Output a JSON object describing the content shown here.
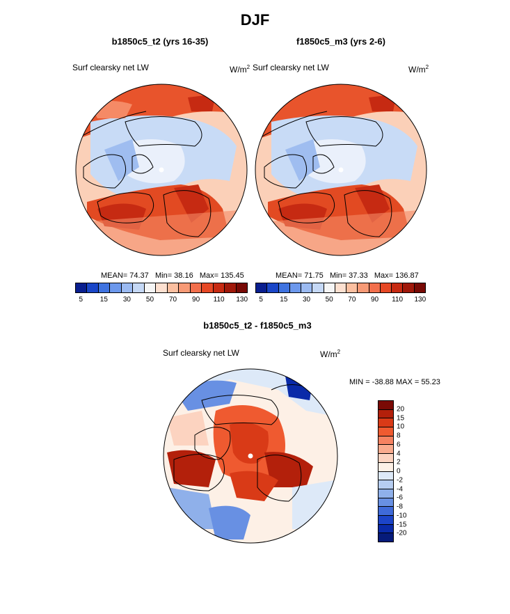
{
  "season_title": "DJF",
  "panels": [
    {
      "title": "b1850c5_t2 (yrs 16-35)",
      "var_label": "Surf clearsky net LW",
      "units": "W/m",
      "units_sup": "2",
      "mean": "MEAN=  74.37",
      "min": "Min=  38.16",
      "max": "Max= 135.45"
    },
    {
      "title": "f1850c5_m3 (yrs 2-6)",
      "var_label": "Surf clearsky net LW",
      "units": "W/m",
      "units_sup": "2",
      "mean": "MEAN=  71.75",
      "min": "Min=  37.33",
      "max": "Max= 136.87"
    }
  ],
  "colorbar": {
    "colors": [
      "#0a1f8f",
      "#1a46c8",
      "#3f73e0",
      "#6c98ec",
      "#9bbaf1",
      "#c5d8f5",
      "#f5f5f5",
      "#fde0d0",
      "#fbbfa0",
      "#f79a76",
      "#f26f4c",
      "#e64825",
      "#c72a12",
      "#a0180a",
      "#780a05"
    ],
    "ticks": [
      "5",
      "15",
      "30",
      "50",
      "70",
      "90",
      "110",
      "130"
    ]
  },
  "diff": {
    "title": "b1850c5_t2 - f1850c5_m3",
    "var_label": "Surf clearsky net LW",
    "units": "W/m",
    "units_sup": "2",
    "minmax": "MIN = -38.88 MAX =  55.23",
    "colorbar": {
      "colors": [
        "#7a0a05",
        "#b3200b",
        "#d93a17",
        "#ef5a30",
        "#f58261",
        "#f9ab8e",
        "#fcd3c0",
        "#fdf0e6",
        "#dde9f8",
        "#b6cdf1",
        "#8fb0ea",
        "#6890e3",
        "#3f6ad9",
        "#1c44c8",
        "#0a2aa8",
        "#061b7a"
      ],
      "ticks": [
        "20",
        "15",
        "10",
        "8",
        "6",
        "4",
        "2",
        "0",
        "-2",
        "-4",
        "-6",
        "-8",
        "-10",
        "-15",
        "-20"
      ]
    }
  },
  "map_features": {
    "coastline_color": "#000000",
    "pole_marker": "north-pole-dot"
  }
}
